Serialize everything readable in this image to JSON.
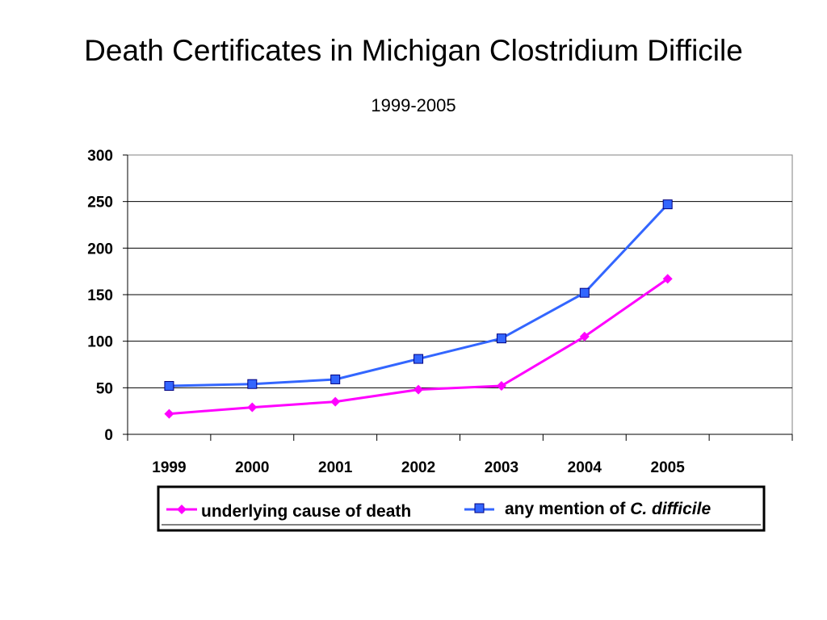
{
  "page": {
    "title": "Death Certificates in Michigan Clostridium Difficile",
    "subtitle": "1999-2005"
  },
  "chart_data": {
    "type": "line",
    "title": "Death Certificates in Michigan Clostridium Difficile",
    "subtitle": "1999-2005",
    "xlabel": "",
    "ylabel": "",
    "categories": [
      "1999",
      "2000",
      "2001",
      "2002",
      "2003",
      "2004",
      "2005"
    ],
    "series": [
      {
        "name": "underlying cause of death",
        "color": "#ff00ff",
        "marker": "diamond",
        "values": [
          22,
          29,
          35,
          48,
          52,
          105,
          167
        ]
      },
      {
        "name": "any mention of C. difficile",
        "name_parts": [
          "any mention of ",
          "C. difficile"
        ],
        "color": "#3366ff",
        "marker": "square",
        "values": [
          52,
          54,
          59,
          81,
          103,
          152,
          247
        ]
      }
    ],
    "ylim": [
      0,
      300
    ],
    "yticks": [
      0,
      50,
      100,
      150,
      200,
      250,
      300
    ],
    "x_slots": 8,
    "grid": "horizontal",
    "legend_position": "bottom"
  }
}
